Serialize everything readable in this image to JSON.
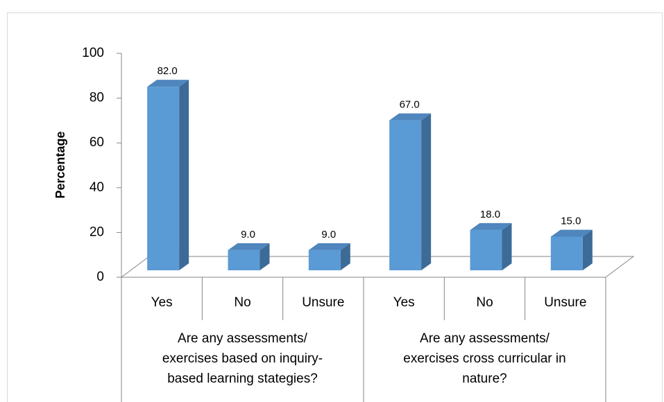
{
  "chart_data": {
    "type": "bar3d",
    "y_label": "Percentage",
    "categories": [
      "Yes",
      "No",
      "Unsure",
      "Yes",
      "No",
      "Unsure"
    ],
    "groups": [
      {
        "label": "Are any assessments/ exercises based on inquiry-based learning stategies?",
        "span": 3
      },
      {
        "label": "Are any assessments/ exercises cross curricular in nature?",
        "span": 3
      }
    ],
    "values": [
      82,
      9,
      9,
      67,
      18,
      15
    ],
    "value_labels": [
      "82.0",
      "9.0",
      "9.0",
      "67.0",
      "18.0",
      "15.0"
    ],
    "color": "#5b9bd5",
    "ylim": [
      0,
      100
    ],
    "yticks": [
      0,
      20,
      40,
      60,
      80,
      100
    ],
    "grid": false
  }
}
